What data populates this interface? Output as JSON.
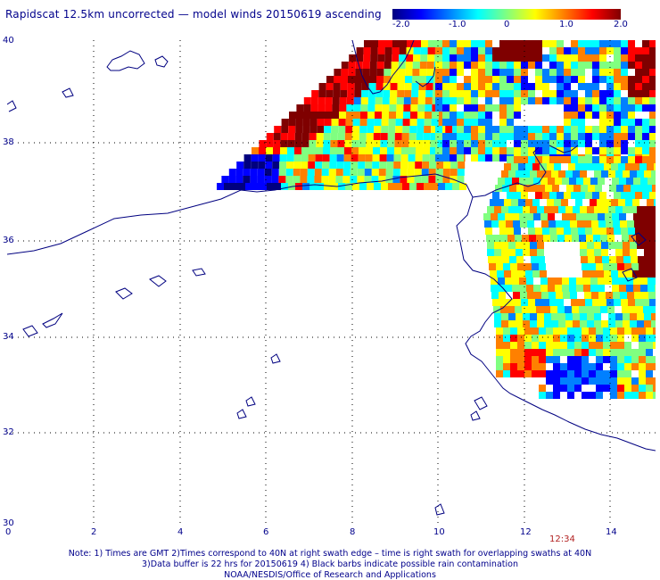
{
  "title": "Rapidscat 12.5km uncorrected — model winds 20150619 ascending",
  "colorbar": {
    "labels": [
      "-2.0",
      "-1.0",
      "0",
      "1.0",
      "2.0"
    ],
    "colors": [
      "#00007f",
      "#0000ff",
      "#0080ff",
      "#00ffff",
      "#80ff80",
      "#ffff00",
      "#ff8000",
      "#ff0000",
      "#7f0000"
    ]
  },
  "axes": {
    "x_ticks": [
      "0",
      "2",
      "4",
      "6",
      "8",
      "10",
      "12",
      "14"
    ],
    "y_ticks": [
      "40",
      "38",
      "36",
      "34",
      "32",
      "30"
    ]
  },
  "time_label": "12:34",
  "notes": [
    "Note: 1) Times are GMT 2)Times correspond to 40N at right swath edge – time is right swath for overlapping swaths at 40N",
    "3)Data buffer is 22 hrs for 20150619 4) Black barbs indicate possible rain contamination",
    "NOAA/NESDIS/Office of Research and Applications"
  ]
}
